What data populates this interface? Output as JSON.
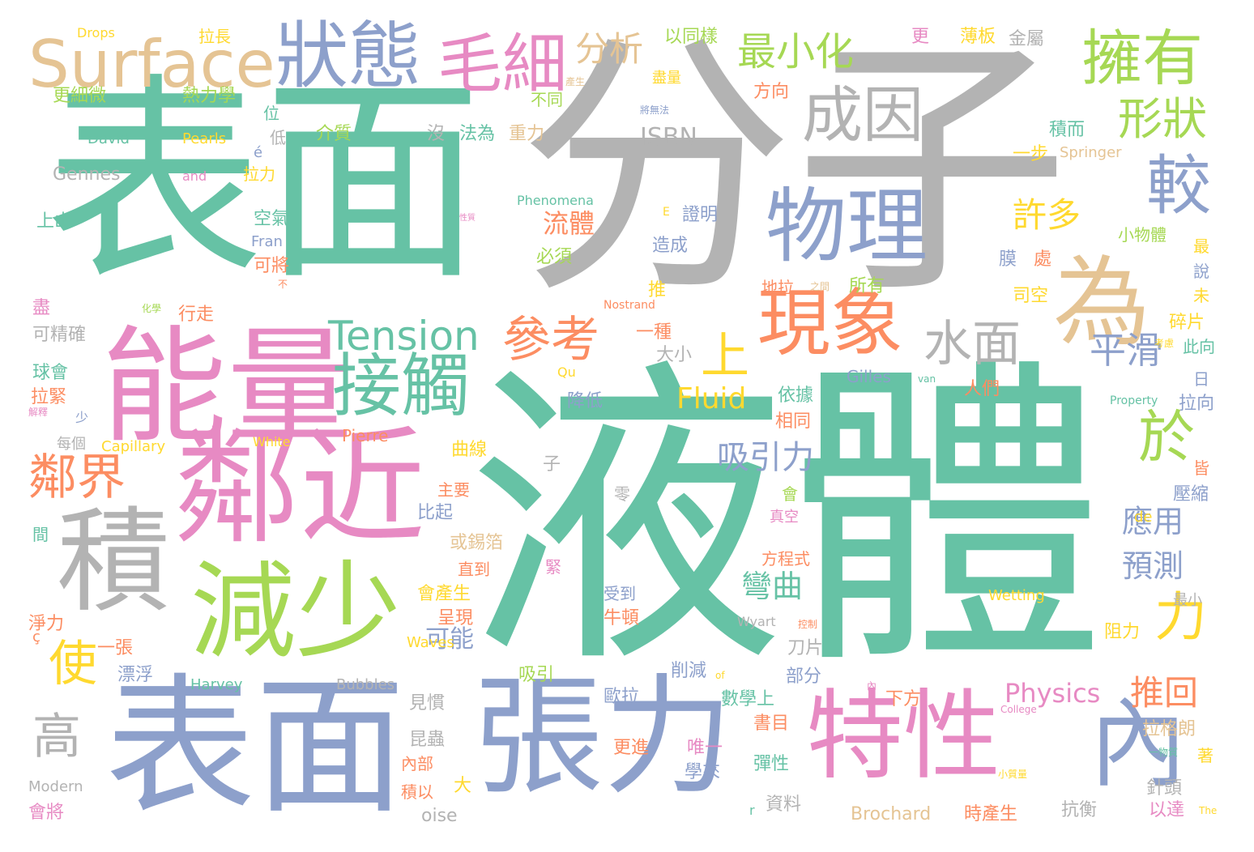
{
  "colors": {
    "green": "#66c2a5",
    "gray": "#b3b3b3",
    "pink": "#e78ac3",
    "blue": "#8da0cb",
    "tan": "#e5c494",
    "orange": "#fc8d62",
    "lime": "#a6d854",
    "yellow": "#ffd92f"
  },
  "words": [
    {
      "text": "液體",
      "color": "green"
    },
    {
      "text": "分子",
      "color": "gray"
    },
    {
      "text": "表面",
      "color": "green"
    },
    {
      "text": "表面",
      "color": "blue"
    },
    {
      "text": "張力",
      "color": "blue"
    },
    {
      "text": "能量",
      "color": "pink"
    },
    {
      "text": "鄰近",
      "color": "pink"
    },
    {
      "text": "特性",
      "color": "pink"
    },
    {
      "text": "內",
      "color": "blue"
    },
    {
      "text": "減少",
      "color": "lime"
    },
    {
      "text": "為",
      "color": "tan"
    },
    {
      "text": "積",
      "color": "gray"
    },
    {
      "text": "狀態",
      "color": "blue"
    },
    {
      "text": "Surface",
      "color": "tan"
    },
    {
      "text": "物理",
      "color": "blue"
    },
    {
      "text": "接觸",
      "color": "green"
    },
    {
      "text": "現象",
      "color": "orange"
    },
    {
      "text": "毛細",
      "color": "pink"
    },
    {
      "text": "成因",
      "color": "gray"
    },
    {
      "text": "擁有",
      "color": "lime"
    },
    {
      "text": "較",
      "color": "blue"
    },
    {
      "text": "水面",
      "color": "gray"
    },
    {
      "text": "Tension",
      "color": "green"
    },
    {
      "text": "參考",
      "color": "orange"
    },
    {
      "text": "鄰界",
      "color": "orange"
    },
    {
      "text": "高",
      "color": "gray"
    },
    {
      "text": "使",
      "color": "yellow"
    },
    {
      "text": "力",
      "color": "yellow"
    },
    {
      "text": "於",
      "color": "lime"
    },
    {
      "text": "形狀",
      "color": "lime"
    },
    {
      "text": "最小化",
      "color": "lime"
    },
    {
      "text": "分析",
      "color": "tan"
    },
    {
      "text": "平滑",
      "color": "blue"
    },
    {
      "text": "上",
      "color": "yellow"
    },
    {
      "text": "許多",
      "color": "yellow"
    },
    {
      "text": "吸引力",
      "color": "blue"
    },
    {
      "text": "應用",
      "color": "blue"
    },
    {
      "text": "預測",
      "color": "blue"
    },
    {
      "text": "彎曲",
      "color": "green"
    },
    {
      "text": "推回",
      "color": "orange"
    },
    {
      "text": "Physics",
      "color": "pink"
    },
    {
      "text": "Fluid",
      "color": "yellow"
    },
    {
      "text": "流體",
      "color": "orange"
    },
    {
      "text": "ISBN",
      "color": "gray"
    },
    {
      "text": "可能",
      "color": "blue"
    },
    {
      "text": "Gennes",
      "color": "gray"
    },
    {
      "text": "Brochard",
      "color": "tan"
    },
    {
      "text": "拉格朗",
      "color": "tan"
    },
    {
      "text": "Drops",
      "color": "yellow"
    },
    {
      "text": "拉長",
      "color": "yellow"
    },
    {
      "text": "以同樣",
      "color": "lime"
    },
    {
      "text": "更",
      "color": "pink"
    },
    {
      "text": "薄板",
      "color": "yellow"
    },
    {
      "text": "金屬",
      "color": "gray"
    },
    {
      "text": "更細微",
      "color": "lime"
    },
    {
      "text": "熱力學",
      "color": "lime"
    },
    {
      "text": "盡量",
      "color": "yellow"
    },
    {
      "text": "方向",
      "color": "orange"
    },
    {
      "text": "產生",
      "color": "tan"
    },
    {
      "text": "不同",
      "color": "lime"
    },
    {
      "text": "將無法",
      "color": "blue"
    },
    {
      "text": "位",
      "color": "green"
    },
    {
      "text": "David",
      "color": "green"
    },
    {
      "text": "Pearls",
      "color": "yellow"
    },
    {
      "text": "é",
      "color": "blue"
    },
    {
      "text": "低",
      "color": "gray"
    },
    {
      "text": "介質",
      "color": "lime"
    },
    {
      "text": "沒",
      "color": "gray"
    },
    {
      "text": "法為",
      "color": "green"
    },
    {
      "text": "重力",
      "color": "tan"
    },
    {
      "text": "積而",
      "color": "green"
    },
    {
      "text": "一步",
      "color": "yellow"
    },
    {
      "text": "Springer",
      "color": "tan"
    },
    {
      "text": "and",
      "color": "pink"
    },
    {
      "text": "拉力",
      "color": "yellow"
    },
    {
      "text": "Phenomena",
      "color": "green"
    },
    {
      "text": "E",
      "color": "yellow"
    },
    {
      "text": "證明",
      "color": "blue"
    },
    {
      "text": "上山",
      "color": "green"
    },
    {
      "text": "空氣",
      "color": "green"
    },
    {
      "text": "性質",
      "color": "pink"
    },
    {
      "text": "Fran",
      "color": "blue"
    },
    {
      "text": "可將",
      "color": "orange"
    },
    {
      "text": "必須",
      "color": "lime"
    },
    {
      "text": "造成",
      "color": "blue"
    },
    {
      "text": "小物體",
      "color": "lime"
    },
    {
      "text": "膜",
      "color": "blue"
    },
    {
      "text": "處",
      "color": "orange"
    },
    {
      "text": "最",
      "color": "yellow"
    },
    {
      "text": "說",
      "color": "blue"
    },
    {
      "text": "不",
      "color": "orange"
    },
    {
      "text": "推",
      "color": "yellow"
    },
    {
      "text": "地拉",
      "color": "orange"
    },
    {
      "text": "之間",
      "color": "tan"
    },
    {
      "text": "所有",
      "color": "lime"
    },
    {
      "text": "司空",
      "color": "yellow"
    },
    {
      "text": "未",
      "color": "yellow"
    },
    {
      "text": "盡",
      "color": "pink"
    },
    {
      "text": "化學",
      "color": "lime"
    },
    {
      "text": "行走",
      "color": "orange"
    },
    {
      "text": "Nostrand",
      "color": "orange"
    },
    {
      "text": "碎片",
      "color": "yellow"
    },
    {
      "text": "可精確",
      "color": "gray"
    },
    {
      "text": "一種",
      "color": "orange"
    },
    {
      "text": "大小",
      "color": "gray"
    },
    {
      "text": "考慮",
      "color": "yellow"
    },
    {
      "text": "此向",
      "color": "green"
    },
    {
      "text": "球會",
      "color": "green"
    },
    {
      "text": "Qu",
      "color": "yellow"
    },
    {
      "text": "Gilles",
      "color": "blue"
    },
    {
      "text": "van",
      "color": "green"
    },
    {
      "text": "人們",
      "color": "orange"
    },
    {
      "text": "日",
      "color": "blue"
    },
    {
      "text": "拉緊",
      "color": "orange"
    },
    {
      "text": "降低",
      "color": "blue"
    },
    {
      "text": "依據",
      "color": "green"
    },
    {
      "text": "Property",
      "color": "green"
    },
    {
      "text": "拉向",
      "color": "blue"
    },
    {
      "text": "解釋",
      "color": "pink"
    },
    {
      "text": "少",
      "color": "blue"
    },
    {
      "text": "相同",
      "color": "orange"
    },
    {
      "text": "每個",
      "color": "gray"
    },
    {
      "text": "Capillary",
      "color": "yellow"
    },
    {
      "text": "White",
      "color": "yellow"
    },
    {
      "text": "Pierre",
      "color": "orange"
    },
    {
      "text": "曲線",
      "color": "yellow"
    },
    {
      "text": "子",
      "color": "gray"
    },
    {
      "text": "皆",
      "color": "orange"
    },
    {
      "text": "主要",
      "color": "orange"
    },
    {
      "text": "零",
      "color": "gray"
    },
    {
      "text": "壓縮",
      "color": "blue"
    },
    {
      "text": "比起",
      "color": "blue"
    },
    {
      "text": "會",
      "color": "lime"
    },
    {
      "text": "de",
      "color": "yellow"
    },
    {
      "text": "真空",
      "color": "pink"
    },
    {
      "text": "間",
      "color": "green"
    },
    {
      "text": "或錫箔",
      "color": "tan"
    },
    {
      "text": "緊",
      "color": "pink"
    },
    {
      "text": "方程式",
      "color": "orange"
    },
    {
      "text": "直到",
      "color": "orange"
    },
    {
      "text": "會產生",
      "color": "yellow"
    },
    {
      "text": "受到",
      "color": "blue"
    },
    {
      "text": "Wetting",
      "color": "yellow"
    },
    {
      "text": "最小",
      "color": "gray"
    },
    {
      "text": "淨力",
      "color": "orange"
    },
    {
      "text": "呈現",
      "color": "orange"
    },
    {
      "text": "牛頓",
      "color": "orange"
    },
    {
      "text": "Wyart",
      "color": "gray"
    },
    {
      "text": "控制",
      "color": "orange"
    },
    {
      "text": "刀片",
      "color": "gray"
    },
    {
      "text": "阻力",
      "color": "yellow"
    },
    {
      "text": "ç",
      "color": "orange"
    },
    {
      "text": "一張",
      "color": "orange"
    },
    {
      "text": "Waves",
      "color": "yellow"
    },
    {
      "text": "漂浮",
      "color": "blue"
    },
    {
      "text": "吸引",
      "color": "lime"
    },
    {
      "text": "削減",
      "color": "blue"
    },
    {
      "text": "of",
      "color": "yellow"
    },
    {
      "text": "部分",
      "color": "blue"
    },
    {
      "text": "Harvey",
      "color": "green"
    },
    {
      "text": "Bubbles",
      "color": "gray"
    },
    {
      "text": "歐拉",
      "color": "blue"
    },
    {
      "text": "數學上",
      "color": "green"
    },
    {
      "text": "內",
      "color": "pink"
    },
    {
      "text": "下方",
      "color": "orange"
    },
    {
      "text": "見慣",
      "color": "gray"
    },
    {
      "text": "College",
      "color": "pink"
    },
    {
      "text": "昆蟲",
      "color": "gray"
    },
    {
      "text": "書目",
      "color": "orange"
    },
    {
      "text": "更進",
      "color": "orange"
    },
    {
      "text": "唯一",
      "color": "pink"
    },
    {
      "text": "著",
      "color": "yellow"
    },
    {
      "text": "一物質",
      "color": "green"
    },
    {
      "text": "內部",
      "color": "orange"
    },
    {
      "text": "學來",
      "color": "blue"
    },
    {
      "text": "彈性",
      "color": "green"
    },
    {
      "text": "Modern",
      "color": "gray"
    },
    {
      "text": "積以",
      "color": "orange"
    },
    {
      "text": "大",
      "color": "yellow"
    },
    {
      "text": "小質量",
      "color": "yellow"
    },
    {
      "text": "針頭",
      "color": "gray"
    },
    {
      "text": "會將",
      "color": "pink"
    },
    {
      "text": "r",
      "color": "green"
    },
    {
      "text": "資料",
      "color": "gray"
    },
    {
      "text": "抗衡",
      "color": "gray"
    },
    {
      "text": "以達",
      "color": "pink"
    },
    {
      "text": "The",
      "color": "yellow"
    },
    {
      "text": "oise",
      "color": "gray"
    },
    {
      "text": "時產生",
      "color": "orange"
    }
  ]
}
